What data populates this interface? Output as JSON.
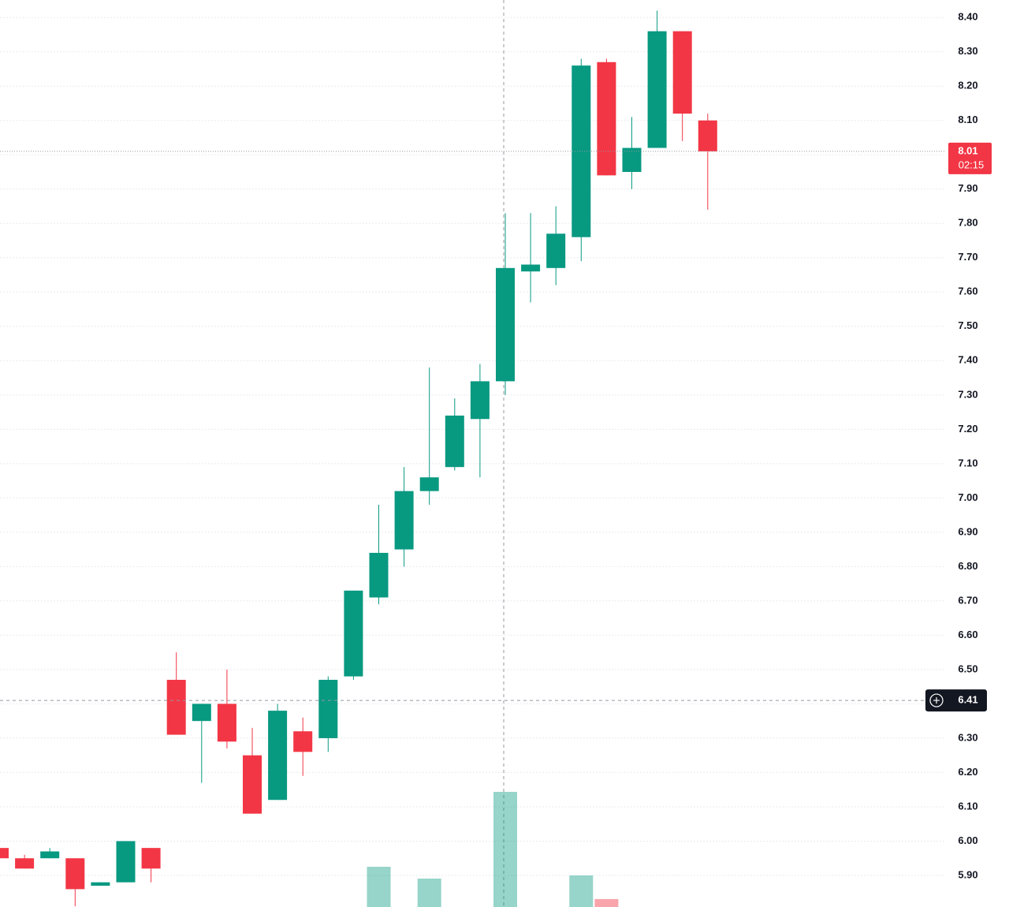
{
  "chart_data": {
    "type": "candlestick",
    "categories": [
      null,
      null,
      null,
      null,
      null,
      null,
      null,
      null,
      null,
      null,
      null,
      null,
      null,
      null,
      null,
      null,
      null,
      null,
      null,
      null,
      null,
      null,
      null,
      null,
      null,
      null,
      null,
      null,
      null
    ],
    "open": [
      5.98,
      5.95,
      5.95,
      5.95,
      5.87,
      5.88,
      5.98,
      6.47,
      6.35,
      6.4,
      6.25,
      6.12,
      6.32,
      6.3,
      6.48,
      6.71,
      6.85,
      7.02,
      7.09,
      7.23,
      7.34,
      7.66,
      7.67,
      7.76,
      8.27,
      7.95,
      8.02,
      8.36,
      8.1
    ],
    "high": [
      5.98,
      5.96,
      5.98,
      5.95,
      5.88,
      6.0,
      5.98,
      6.55,
      6.4,
      6.5,
      6.33,
      6.4,
      6.36,
      6.48,
      6.73,
      6.98,
      7.09,
      7.38,
      7.29,
      7.39,
      7.83,
      7.83,
      7.85,
      8.28,
      8.28,
      8.11,
      8.42,
      8.36,
      8.12
    ],
    "low": [
      5.95,
      5.92,
      5.95,
      5.81,
      5.87,
      5.88,
      5.88,
      6.31,
      6.17,
      6.27,
      6.08,
      6.12,
      6.19,
      6.26,
      6.47,
      6.69,
      6.8,
      6.98,
      7.08,
      7.06,
      7.3,
      7.57,
      7.62,
      7.69,
      7.94,
      7.9,
      8.02,
      8.04,
      7.84
    ],
    "close": [
      5.95,
      5.92,
      5.97,
      5.86,
      5.88,
      6.0,
      5.92,
      6.31,
      6.4,
      6.29,
      6.08,
      6.38,
      6.26,
      6.47,
      6.73,
      6.84,
      7.02,
      7.06,
      7.24,
      7.34,
      7.67,
      7.68,
      7.77,
      8.26,
      7.94,
      8.02,
      8.36,
      8.12,
      8.01
    ],
    "volume": [
      null,
      null,
      null,
      null,
      null,
      null,
      null,
      null,
      null,
      null,
      null,
      null,
      null,
      null,
      null,
      51,
      null,
      36,
      null,
      null,
      146,
      null,
      null,
      40,
      10,
      null,
      null,
      null,
      null
    ],
    "vlim": [
      0,
      400
    ],
    "up_color": "#089981",
    "down_color": "#f23645",
    "ylim": [
      5.808,
      8.451
    ],
    "yticks": [
      {
        "value": 5.9,
        "label": "5.90"
      },
      {
        "value": 6.0,
        "label": "6.00"
      },
      {
        "value": 6.1,
        "label": "6.10"
      },
      {
        "value": 6.2,
        "label": "6.20"
      },
      {
        "value": 6.3,
        "label": "6.30"
      },
      {
        "value": 6.4,
        "label": "6.40"
      },
      {
        "value": 6.5,
        "label": "6.50"
      },
      {
        "value": 6.6,
        "label": "6.60"
      },
      {
        "value": 6.7,
        "label": "6.70"
      },
      {
        "value": 6.8,
        "label": "6.80"
      },
      {
        "value": 6.9,
        "label": "6.90"
      },
      {
        "value": 7.0,
        "label": "7.00"
      },
      {
        "value": 7.1,
        "label": "7.10"
      },
      {
        "value": 7.2,
        "label": "7.20"
      },
      {
        "value": 7.3,
        "label": "7.30"
      },
      {
        "value": 7.4,
        "label": "7.40"
      },
      {
        "value": 7.5,
        "label": "7.50"
      },
      {
        "value": 7.6,
        "label": "7.60"
      },
      {
        "value": 7.7,
        "label": "7.70"
      },
      {
        "value": 7.8,
        "label": "7.80"
      },
      {
        "value": 7.9,
        "label": "7.90"
      },
      {
        "value": 8.0,
        "label": "8.00"
      },
      {
        "value": 8.1,
        "label": "8.10"
      },
      {
        "value": 8.2,
        "label": "8.20"
      },
      {
        "value": 8.3,
        "label": "8.30"
      },
      {
        "value": 8.4,
        "label": "8.40"
      }
    ],
    "grid": true,
    "last_price": 8.01,
    "countdown": "02:15",
    "crosshair_price": 6.41
  }
}
